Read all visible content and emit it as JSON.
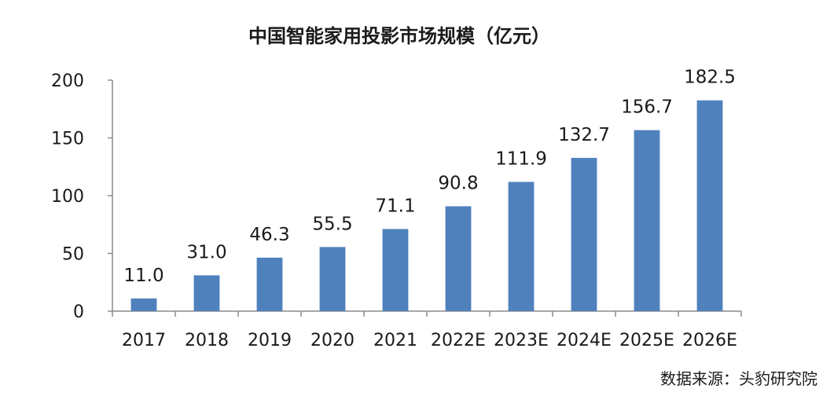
{
  "chart_data": {
    "type": "bar",
    "title": "中国智能家用投影市场规模（亿元）",
    "categories": [
      "2017",
      "2018",
      "2019",
      "2020",
      "2021",
      "2022E",
      "2023E",
      "2024E",
      "2025E",
      "2026E"
    ],
    "values": [
      11.0,
      31.0,
      46.3,
      55.5,
      71.1,
      90.8,
      111.9,
      132.7,
      156.7,
      182.5
    ],
    "data_labels": [
      "11.0",
      "31.0",
      "46.3",
      "55.5",
      "71.1",
      "90.8",
      "111.9",
      "132.7",
      "156.7",
      "182.5"
    ],
    "xlabel": "",
    "ylabel": "",
    "ylim": [
      0,
      200
    ],
    "yticks": [
      0,
      50,
      100,
      150,
      200
    ],
    "grid": false,
    "legend": "none",
    "bar_color": "#4f81bd"
  },
  "source": "数据来源：头豹研究院"
}
